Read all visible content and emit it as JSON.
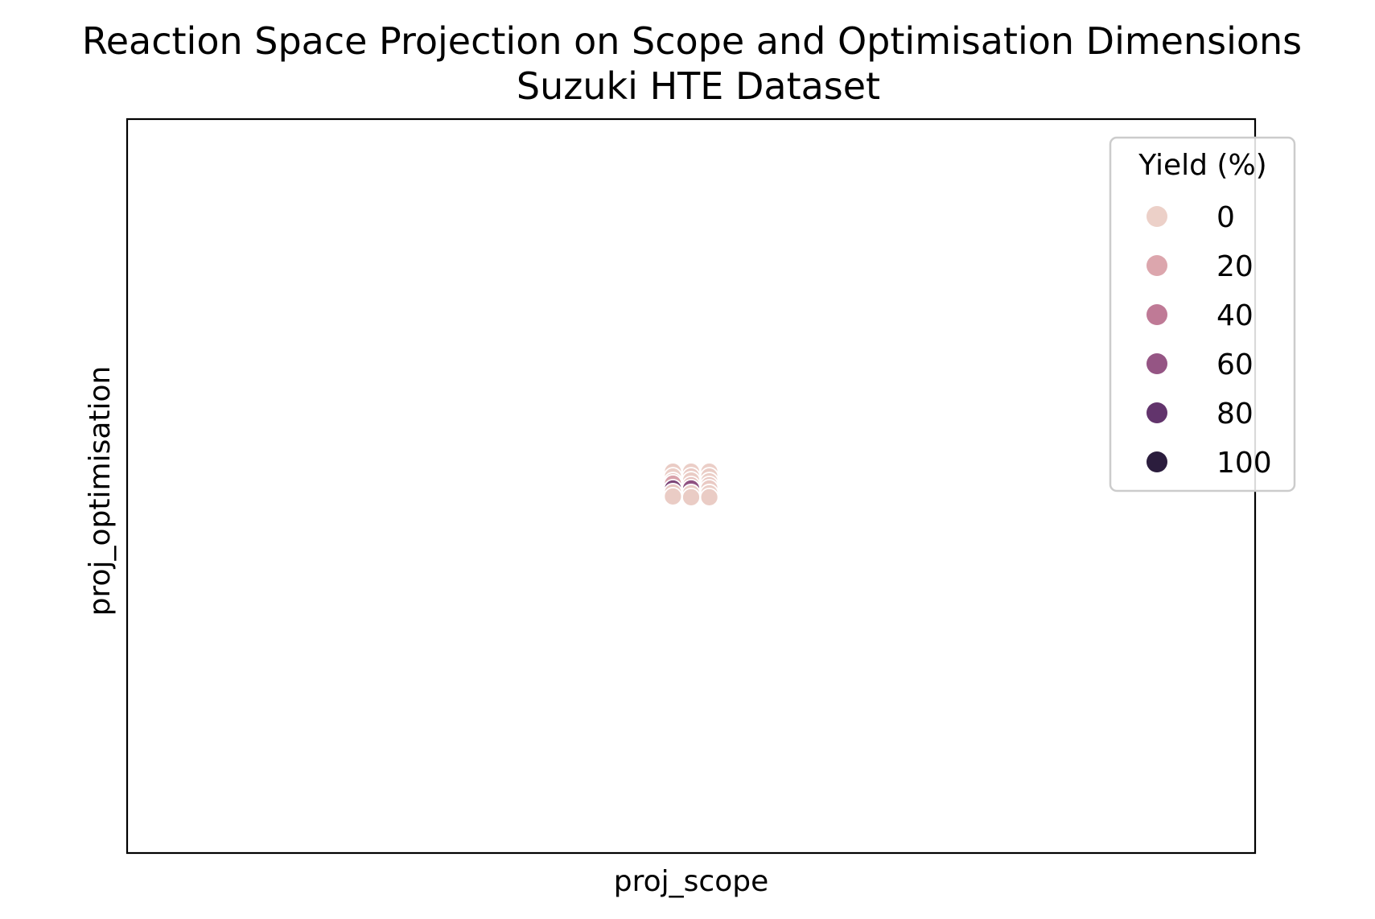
{
  "chart_data": {
    "type": "scatter",
    "title_lines": [
      "Reaction Space Projection on Scope and Optimisation Dimensions",
      "Suzuki HTE Dataset"
    ],
    "xlabel": "proj_scope",
    "ylabel": "proj_optimisation",
    "x_ticks": [],
    "y_ticks": [],
    "grid": false,
    "hue_variable": "Yield (%)",
    "legend": {
      "title": "Yield (%)",
      "placement": "upper-right",
      "entries": [
        {
          "label": "0",
          "color": "#ecd0c8"
        },
        {
          "label": "20",
          "color": "#dca6ad"
        },
        {
          "label": "40",
          "color": "#bf7a96"
        },
        {
          "label": "60",
          "color": "#955584"
        },
        {
          "label": "80",
          "color": "#62346c"
        },
        {
          "label": "100",
          "color": "#2b1d3d"
        }
      ]
    },
    "points": [
      {
        "x": -1.0,
        "y": 0.9,
        "yield": 2
      },
      {
        "x": -1.0,
        "y": 0.6,
        "yield": 1
      },
      {
        "x": -1.0,
        "y": 0.3,
        "yield": 3
      },
      {
        "x": -1.0,
        "y": 0.15,
        "yield": 22
      },
      {
        "x": -1.0,
        "y": -0.15,
        "yield": 70
      },
      {
        "x": -1.0,
        "y": -0.4,
        "yield": 5
      },
      {
        "x": -1.0,
        "y": -0.65,
        "yield": 2
      },
      {
        "x": 0.0,
        "y": 0.9,
        "yield": 1
      },
      {
        "x": 0.0,
        "y": 0.6,
        "yield": 3
      },
      {
        "x": 0.0,
        "y": 0.35,
        "yield": 2
      },
      {
        "x": 0.0,
        "y": 0.05,
        "yield": 6
      },
      {
        "x": 0.0,
        "y": -0.15,
        "yield": 62
      },
      {
        "x": 0.0,
        "y": -0.45,
        "yield": 1
      },
      {
        "x": 0.0,
        "y": -0.7,
        "yield": 2
      },
      {
        "x": 1.0,
        "y": 0.9,
        "yield": 1
      },
      {
        "x": 1.0,
        "y": 0.6,
        "yield": 2
      },
      {
        "x": 1.0,
        "y": 0.3,
        "yield": 1
      },
      {
        "x": 1.0,
        "y": 0.05,
        "yield": 4
      },
      {
        "x": 1.0,
        "y": -0.15,
        "yield": 3
      },
      {
        "x": 1.0,
        "y": -0.45,
        "yield": 1
      },
      {
        "x": 1.0,
        "y": -0.7,
        "yield": 2
      }
    ],
    "xlim": [
      -31,
      31
    ],
    "ylim": [
      -23,
      23
    ]
  }
}
